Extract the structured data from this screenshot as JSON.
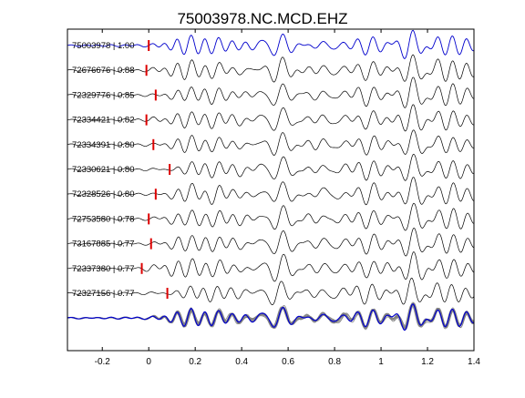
{
  "chart_data": {
    "type": "line",
    "title": "75003978.NC.MCD.EHZ",
    "xlabel": "",
    "ylabel": "",
    "xlim": [
      -0.35,
      1.4
    ],
    "x_ticks": [
      -0.2,
      0,
      0.2,
      0.4,
      0.6,
      0.8,
      1,
      1.2,
      1.4
    ],
    "x_tick_labels": [
      "-0.2",
      "0",
      "0.2",
      "0.4",
      "0.6",
      "0.8",
      "1",
      "1.2",
      "1.4"
    ],
    "grid": false,
    "colors": {
      "reference": "#0000cc",
      "trace": "#000000",
      "pick": "#dd0000",
      "stack": "#808080"
    },
    "series": [
      {
        "label": "75003978 | 1.00",
        "pick_x": 0.0,
        "reference": true
      },
      {
        "label": "72676676 | 0.88",
        "pick_x": -0.01
      },
      {
        "label": "72329776 | 0.85",
        "pick_x": 0.03
      },
      {
        "label": "72334421 | 0.82",
        "pick_x": -0.01
      },
      {
        "label": "72334391 | 0.80",
        "pick_x": 0.02
      },
      {
        "label": "72330621 | 0.80",
        "pick_x": 0.09
      },
      {
        "label": "72328526 | 0.80",
        "pick_x": 0.03
      },
      {
        "label": "72753580 | 0.78",
        "pick_x": 0.0
      },
      {
        "label": "73167885 | 0.77",
        "pick_x": 0.01
      },
      {
        "label": "72337380 | 0.77",
        "pick_x": -0.03
      },
      {
        "label": "72327156 | 0.77",
        "pick_x": 0.08
      }
    ],
    "stack_row": true
  }
}
